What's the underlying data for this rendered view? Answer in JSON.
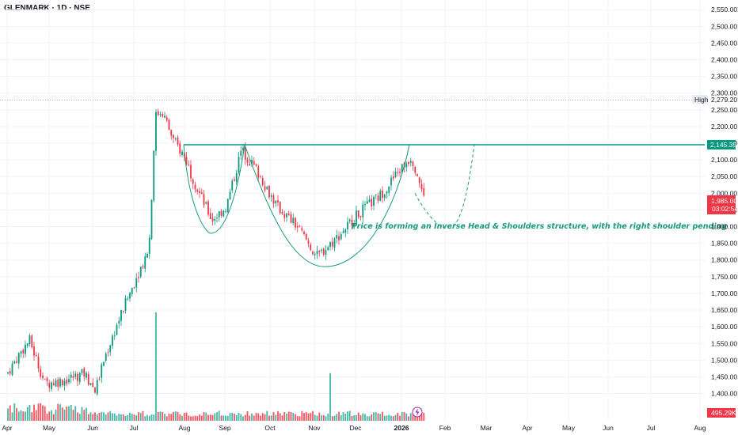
{
  "header": {
    "title": "GLENMARK · 1D · NSE"
  },
  "colors": {
    "up": "#089981",
    "down": "#f23645",
    "vol_up": "#22ab94",
    "vol_down": "#f23645",
    "pattern": "#1a9a7e",
    "neckline": "#089981",
    "grid": "#f0f3fa",
    "axis_text": "#131722",
    "high_label_bg": "#e9ecf2",
    "neckline_tag_bg": "#089981",
    "price_tag_bg": "#f23645",
    "vol_tag_bg": "#f23645"
  },
  "chart_data": {
    "type": "candlestick",
    "title": "GLENMARK · 1D · NSE",
    "x_months": [
      "Apr",
      "May",
      "Jun",
      "Jul",
      "Aug",
      "Sep",
      "Oct",
      "Nov",
      "Dec",
      "2026",
      "Feb",
      "Mar",
      "Apr",
      "May",
      "Jun",
      "Jul",
      "Aug"
    ],
    "y_ticks": [
      "1,400.00",
      "1,450.00",
      "1,500.00",
      "1,550.00",
      "1,600.00",
      "1,650.00",
      "1,700.00",
      "1,750.00",
      "1,800.00",
      "1,850.00",
      "1,900.00",
      "1,950.00",
      "2,000.00",
      "2,050.00",
      "2,100.00",
      "2,150.00",
      "2,200.00",
      "2,250.00",
      "2,300.00",
      "2,350.00",
      "2,400.00",
      "2,450.00",
      "2,500.00",
      "2,550.00"
    ],
    "ylim": [
      1380,
      2560
    ],
    "price_path": [
      {
        "date": "2025-04-01",
        "close": 1460
      },
      {
        "date": "2025-04-10",
        "close": 1520
      },
      {
        "date": "2025-04-17",
        "close": 1560
      },
      {
        "date": "2025-04-28",
        "close": 1430
      },
      {
        "date": "2025-05-12",
        "close": 1440
      },
      {
        "date": "2025-05-26",
        "close": 1460
      },
      {
        "date": "2025-06-03",
        "close": 1410
      },
      {
        "date": "2025-06-10",
        "close": 1510
      },
      {
        "date": "2025-06-20",
        "close": 1620
      },
      {
        "date": "2025-07-01",
        "close": 1730
      },
      {
        "date": "2025-07-09",
        "close": 1820
      },
      {
        "date": "2025-07-11",
        "close": 1880
      },
      {
        "date": "2025-07-14",
        "close": 2230
      },
      {
        "date": "2025-07-18",
        "close": 2250
      },
      {
        "date": "2025-07-25",
        "close": 2160
      },
      {
        "date": "2025-08-01",
        "close": 2110
      },
      {
        "date": "2025-08-10",
        "close": 2020
      },
      {
        "date": "2025-08-22",
        "close": 1920
      },
      {
        "date": "2025-09-02",
        "close": 1960
      },
      {
        "date": "2025-09-12",
        "close": 2130
      },
      {
        "date": "2025-09-22",
        "close": 2070
      },
      {
        "date": "2025-10-06",
        "close": 1960
      },
      {
        "date": "2025-10-20",
        "close": 1900
      },
      {
        "date": "2025-11-03",
        "close": 1810
      },
      {
        "date": "2025-11-18",
        "close": 1870
      },
      {
        "date": "2025-12-03",
        "close": 1940
      },
      {
        "date": "2025-12-17",
        "close": 1990
      },
      {
        "date": "2025-12-31",
        "close": 2070
      },
      {
        "date": "2026-01-08",
        "close": 2110
      },
      {
        "date": "2026-01-13",
        "close": 2050
      },
      {
        "date": "2026-01-17",
        "close": 1985
      }
    ],
    "high_label": "High",
    "high_value": "2,279.20",
    "neckline_value": "2,145.35",
    "last_price": "1,985.00",
    "last_countdown": "03:02:54",
    "volume_last": "495.29K",
    "volume_spikes": [
      {
        "date": "2025-07-14",
        "rel": 0.98
      },
      {
        "date": "2025-11-13",
        "rel": 0.43
      }
    ],
    "annotation": "Price is forming an Inverse Head & Shoulders structure, with the right shoulder pending"
  }
}
